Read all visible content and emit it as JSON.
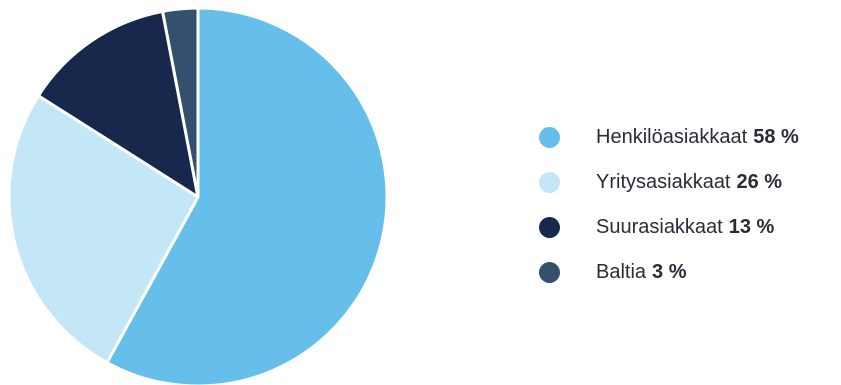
{
  "chart_data": {
    "type": "pie",
    "title": "",
    "start_angle_deg": 0,
    "direction": "clockwise",
    "legend_position": "right",
    "slices": [
      {
        "name": "Henkilöasiakkaat",
        "value": 58,
        "value_label": "58 %",
        "color": "#66bfea"
      },
      {
        "name": "Yritysasiakkaat",
        "value": 26,
        "value_label": "26 %",
        "color": "#c3e7f7"
      },
      {
        "name": "Suurasiakkaat",
        "value": 13,
        "value_label": "13 %",
        "color": "#17284c"
      },
      {
        "name": "Baltia",
        "value": 3,
        "value_label": "3 %",
        "color": "#354f6e"
      }
    ]
  }
}
